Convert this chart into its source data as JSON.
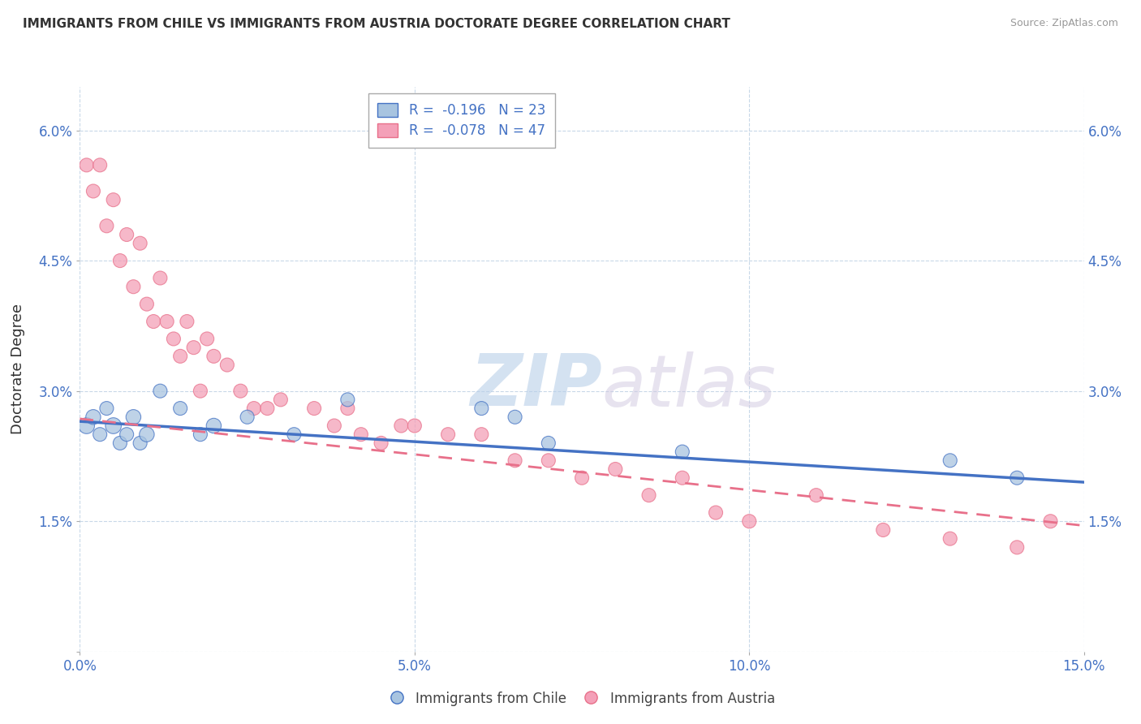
{
  "title": "IMMIGRANTS FROM CHILE VS IMMIGRANTS FROM AUSTRIA DOCTORATE DEGREE CORRELATION CHART",
  "source": "Source: ZipAtlas.com",
  "ylabel": "Doctorate Degree",
  "x_min": 0.0,
  "x_max": 0.15,
  "y_min": 0.0,
  "y_max": 0.065,
  "x_ticks": [
    0.0,
    0.05,
    0.1,
    0.15
  ],
  "x_tick_labels": [
    "0.0%",
    "5.0%",
    "10.0%",
    "15.0%"
  ],
  "y_ticks": [
    0.0,
    0.015,
    0.03,
    0.045,
    0.06
  ],
  "y_tick_labels": [
    "",
    "1.5%",
    "3.0%",
    "4.5%",
    "6.0%"
  ],
  "legend_chile_R": "-0.196",
  "legend_chile_N": "23",
  "legend_austria_R": "-0.078",
  "legend_austria_N": "47",
  "chile_color": "#a8c4e0",
  "austria_color": "#f4a0b8",
  "chile_line_color": "#4472c4",
  "austria_line_color": "#e8708a",
  "legend_text_color": "#4472c4",
  "chile_x": [
    0.001,
    0.002,
    0.003,
    0.004,
    0.005,
    0.006,
    0.007,
    0.008,
    0.009,
    0.01,
    0.012,
    0.015,
    0.018,
    0.02,
    0.025,
    0.032,
    0.04,
    0.06,
    0.065,
    0.07,
    0.09,
    0.13,
    0.14
  ],
  "chile_y": [
    0.026,
    0.027,
    0.025,
    0.028,
    0.026,
    0.024,
    0.025,
    0.027,
    0.024,
    0.025,
    0.03,
    0.028,
    0.025,
    0.026,
    0.027,
    0.025,
    0.029,
    0.028,
    0.027,
    0.024,
    0.023,
    0.022,
    0.02
  ],
  "chile_sizes": [
    30,
    35,
    30,
    30,
    40,
    30,
    30,
    35,
    30,
    35,
    30,
    30,
    30,
    35,
    30,
    30,
    30,
    30,
    30,
    30,
    30,
    30,
    30
  ],
  "chile_large_idx": [
    0
  ],
  "chile_large_size": 200,
  "austria_x": [
    0.001,
    0.002,
    0.003,
    0.004,
    0.005,
    0.006,
    0.007,
    0.008,
    0.009,
    0.01,
    0.011,
    0.012,
    0.013,
    0.014,
    0.015,
    0.016,
    0.017,
    0.018,
    0.019,
    0.02,
    0.022,
    0.024,
    0.026,
    0.028,
    0.03,
    0.035,
    0.038,
    0.04,
    0.042,
    0.045,
    0.048,
    0.05,
    0.055,
    0.06,
    0.065,
    0.07,
    0.075,
    0.08,
    0.085,
    0.09,
    0.095,
    0.1,
    0.11,
    0.12,
    0.13,
    0.14,
    0.145
  ],
  "austria_y": [
    0.056,
    0.053,
    0.056,
    0.049,
    0.052,
    0.045,
    0.048,
    0.042,
    0.047,
    0.04,
    0.038,
    0.043,
    0.038,
    0.036,
    0.034,
    0.038,
    0.035,
    0.03,
    0.036,
    0.034,
    0.033,
    0.03,
    0.028,
    0.028,
    0.029,
    0.028,
    0.026,
    0.028,
    0.025,
    0.024,
    0.026,
    0.026,
    0.025,
    0.025,
    0.022,
    0.022,
    0.02,
    0.021,
    0.018,
    0.02,
    0.016,
    0.015,
    0.018,
    0.014,
    0.013,
    0.012,
    0.015
  ],
  "austria_sizes": [
    30,
    30,
    30,
    30,
    30,
    30,
    30,
    30,
    30,
    30,
    30,
    30,
    30,
    30,
    30,
    30,
    30,
    30,
    30,
    30,
    30,
    30,
    30,
    30,
    30,
    30,
    30,
    30,
    30,
    30,
    30,
    30,
    30,
    30,
    30,
    30,
    30,
    30,
    30,
    30,
    30,
    30,
    30,
    30,
    30,
    30,
    30
  ],
  "watermark_zip": "ZIP",
  "watermark_atlas": "atlas",
  "background_color": "#ffffff",
  "grid_color": "#c8d8e8"
}
